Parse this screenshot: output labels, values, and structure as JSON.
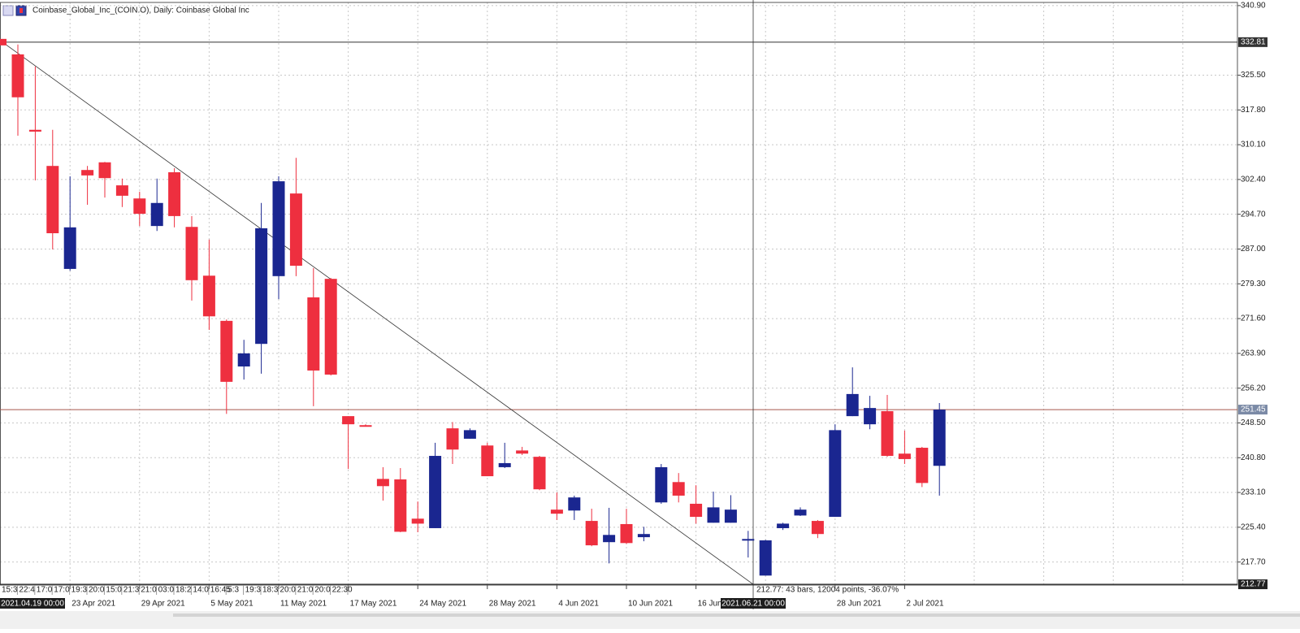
{
  "chart_data": {
    "type": "candlestick",
    "title": "Coinbase_Global_Inc_(COIN.O), Daily:  Coinbase Global Inc",
    "categories": [
      null,
      null,
      null,
      "23 Apr 2021",
      null,
      null,
      null,
      "29 Apr 2021",
      null,
      null,
      null,
      "5 May 2021",
      null,
      null,
      null,
      "11 May 2021",
      null,
      null,
      null,
      "17 May 2021",
      null,
      null,
      null,
      "24 May 2021",
      null,
      null,
      null,
      "28 May 2021",
      null,
      null,
      null,
      "4 Jun 2021",
      null,
      null,
      null,
      "10 Jun 2021",
      null,
      null,
      null,
      "16 Jun 2021",
      null,
      null,
      null,
      null,
      null,
      null,
      null,
      "28 Jun 2021",
      null,
      null,
      null,
      "2 Jul 2021",
      null,
      null
    ],
    "open": [
      330.1,
      313.4,
      305.4,
      282.6,
      304.5,
      306.2,
      301.1,
      298.2,
      292.1,
      304.0,
      291.9,
      281.1,
      271.1,
      261.0,
      266.0,
      281.0,
      299.3,
      276.3,
      280.4,
      250.0,
      248.0,
      236.1,
      236.0,
      227.3,
      225.2,
      247.3,
      245.0,
      243.5,
      238.7,
      242.4,
      241.0,
      229.3,
      229.1,
      226.8,
      222.1,
      226.1,
      223.2,
      230.9,
      235.4,
      230.6,
      226.4,
      226.4,
      222.6,
      214.7,
      225.2,
      228.0,
      226.8,
      227.7,
      250.0,
      248.2,
      251.1,
      241.7,
      243.0,
      239.0
    ],
    "high": [
      332.3,
      327.4,
      313.4,
      303.1,
      305.4,
      306.3,
      302.6,
      299.7,
      302.6,
      304.9,
      294.3,
      289.1,
      271.4,
      266.9,
      297.2,
      303.1,
      307.2,
      282.8,
      280.6,
      250.0,
      248.2,
      238.7,
      238.5,
      231.1,
      244.1,
      248.7,
      247.3,
      244.1,
      244.1,
      243.2,
      241.2,
      233.1,
      232.4,
      229.5,
      229.7,
      229.5,
      225.5,
      239.4,
      237.4,
      234.7,
      233.3,
      232.5,
      224.6,
      222.6,
      226.4,
      229.8,
      227.0,
      248.2,
      260.8,
      254.5,
      254.7,
      246.8,
      243.2,
      252.9
    ],
    "low": [
      312.1,
      302.2,
      286.9,
      282.2,
      296.8,
      298.4,
      296.3,
      292.1,
      291.0,
      291.8,
      275.6,
      269.1,
      250.5,
      258.1,
      259.4,
      275.9,
      281.0,
      252.2,
      259.0,
      238.3,
      247.7,
      231.3,
      224.3,
      224.3,
      225.2,
      239.4,
      245.0,
      236.7,
      238.5,
      241.4,
      233.6,
      227.0,
      227.0,
      221.2,
      217.4,
      221.7,
      222.3,
      230.6,
      230.9,
      226.2,
      226.4,
      226.4,
      218.7,
      214.7,
      224.8,
      227.9,
      223.0,
      227.7,
      250.0,
      247.1,
      241.0,
      239.4,
      234.3,
      232.4
    ],
    "close": [
      320.6,
      313.0,
      290.5,
      291.8,
      303.3,
      302.7,
      298.8,
      294.8,
      297.2,
      294.3,
      280.1,
      272.1,
      257.6,
      263.9,
      291.6,
      302.0,
      283.3,
      260.1,
      259.2,
      248.2,
      247.7,
      234.5,
      224.4,
      226.2,
      241.2,
      242.6,
      246.9,
      236.7,
      239.6,
      241.7,
      233.8,
      228.4,
      232.0,
      221.4,
      223.7,
      221.9,
      223.9,
      238.7,
      232.4,
      227.7,
      229.8,
      229.3,
      222.8,
      222.5,
      226.2,
      229.3,
      223.9,
      246.9,
      254.9,
      251.8,
      241.2,
      240.5,
      235.2,
      251.45
    ],
    "up_color": "#1a2690",
    "down_color": "#ee2f3f",
    "ylim": [
      212.6,
      341.6
    ],
    "yticks": [
      {
        "value": 340.9,
        "label": "340.90"
      },
      {
        "value": 325.5,
        "label": "325.50"
      },
      {
        "value": 317.8,
        "label": "317.80"
      },
      {
        "value": 310.1,
        "label": "310.10"
      },
      {
        "value": 302.4,
        "label": "302.40"
      },
      {
        "value": 294.7,
        "label": "294.70"
      },
      {
        "value": 287,
        "label": "287.00"
      },
      {
        "value": 279.3,
        "label": "279.30"
      },
      {
        "value": 271.6,
        "label": "271.60"
      },
      {
        "value": 263.9,
        "label": "263.90"
      },
      {
        "value": 256.2,
        "label": "256.20"
      },
      {
        "value": 248.5,
        "label": "248.50"
      },
      {
        "value": 240.8,
        "label": "240.80"
      },
      {
        "value": 233.1,
        "label": "233.10"
      },
      {
        "value": 225.4,
        "label": "225.40"
      },
      {
        "value": 217.7,
        "label": "217.70"
      }
    ],
    "grid": true,
    "price_lines": [
      {
        "value": 332.81,
        "color": "#333333"
      },
      {
        "value": 251.45,
        "color": "#a8584c"
      },
      {
        "value": 212.77,
        "color": "#222222"
      }
    ],
    "trendline": {
      "start": 332.81,
      "end": 212.77
    },
    "time_labels": [
      "15:3",
      "22:4",
      "17:0",
      "17:0",
      "19:3",
      "20:0",
      "15:0",
      "21:3",
      "21:0",
      "03:0",
      "18:2",
      "14:0",
      "16:45",
      "5:3",
      "19:3",
      "18:3",
      "20:0",
      "21:0",
      "20:0",
      "22:30"
    ],
    "crosshair_labels": [
      "2021.04.19 00:00",
      "2021.06.21 00:00"
    ],
    "measure": "212.77: 43 bars, 12004 points, -36.07%"
  }
}
